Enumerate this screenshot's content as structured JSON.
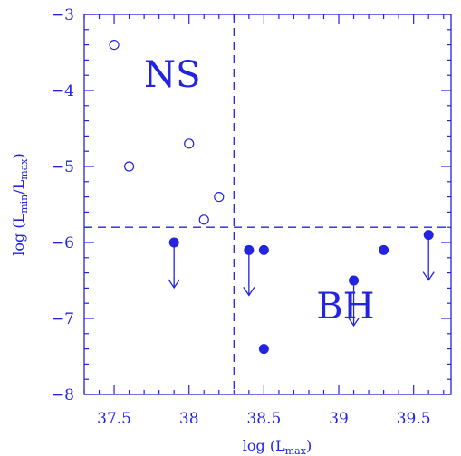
{
  "chart_data": {
    "type": "scatter",
    "xlabel": "log (L_max)",
    "ylabel": "log (L_min/L_max)",
    "xlim": [
      37.3,
      39.75
    ],
    "ylim": [
      -8,
      -3
    ],
    "xticks": [
      "37.5",
      "38",
      "38.5",
      "39",
      "39.5"
    ],
    "yticks": [
      "−3",
      "−4",
      "−5",
      "−6",
      "−7",
      "−8"
    ],
    "xtick_values": [
      37.5,
      38.0,
      38.5,
      39.0,
      39.5
    ],
    "ytick_values": [
      -3,
      -4,
      -5,
      -6,
      -7,
      -8
    ],
    "divider_x": 38.3,
    "divider_y": -5.8,
    "annotations": [
      {
        "text": "NS",
        "x": 37.7,
        "y": -3.95
      },
      {
        "text": "BH",
        "x": 38.85,
        "y": -7.0
      }
    ],
    "series": [
      {
        "marker": "open-circle",
        "x": [
          37.5,
          37.6,
          38.0,
          38.1,
          38.2
        ],
        "y": [
          -3.4,
          -5.0,
          -4.7,
          -5.7,
          -5.4
        ]
      },
      {
        "marker": "filled-circle",
        "x": [
          37.9,
          38.4,
          38.5,
          38.5,
          39.1,
          39.3,
          39.6
        ],
        "y": [
          -6.0,
          -6.1,
          -6.1,
          -7.4,
          -6.5,
          -6.1,
          -5.9
        ]
      },
      {
        "marker": "upper-limit-arrow",
        "x": [
          37.9,
          38.4,
          39.1,
          39.6
        ],
        "y": [
          -6.0,
          -6.1,
          -6.5,
          -5.9
        ]
      }
    ],
    "colors": {
      "ink": "#2323e0"
    }
  }
}
